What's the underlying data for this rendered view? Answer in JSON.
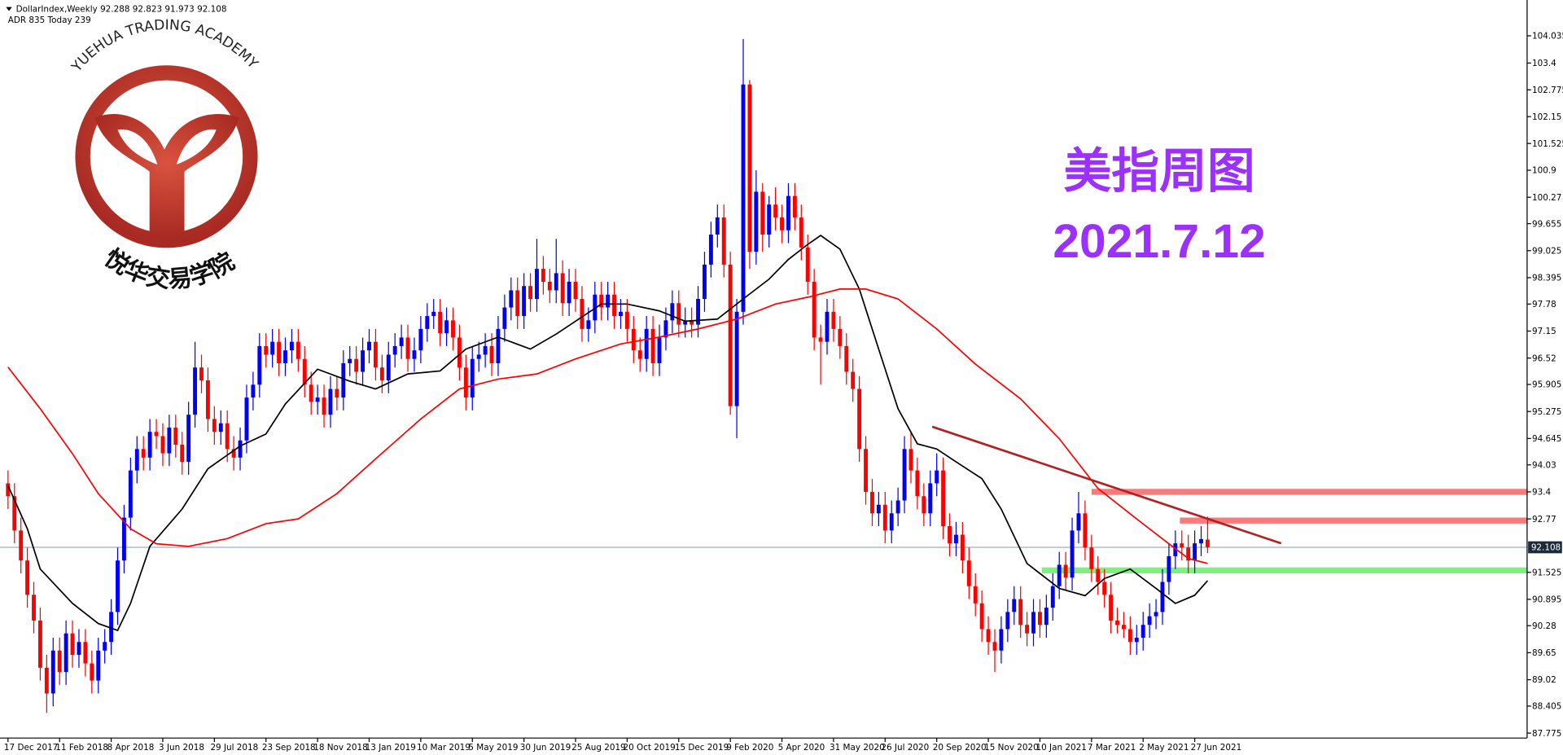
{
  "chart_data": {
    "type": "candlestick",
    "title": "DollarIndex,Weekly",
    "subtitle": "ADR 835  Today 239",
    "up_color": "#0000ff",
    "down_color": "#ff0000",
    "open": [
      93.6,
      93.3,
      92.5,
      91.8,
      91.0,
      90.4,
      89.3,
      88.7,
      89.7,
      89.2,
      90.1,
      89.6,
      89.9,
      89.4,
      89.0,
      89.7,
      89.9,
      90.6,
      91.8,
      92.8,
      93.9,
      94.4,
      94.2,
      94.8,
      94.7,
      94.3,
      94.9,
      94.5,
      94.1,
      95.2,
      96.3,
      96.0,
      95.1,
      94.8,
      95.0,
      94.4,
      94.2,
      94.6,
      95.6,
      95.9,
      96.8,
      96.6,
      96.9,
      96.4,
      96.7,
      96.9,
      96.5,
      95.9,
      95.5,
      95.6,
      95.2,
      95.8,
      95.6,
      96.4,
      96.5,
      96.2,
      96.7,
      96.9,
      96.3,
      96.0,
      96.6,
      96.8,
      97.0,
      96.5,
      96.7,
      97.2,
      97.5,
      97.6,
      97.1,
      97.4,
      97.0,
      96.3,
      95.6,
      96.5,
      96.6,
      96.8,
      96.4,
      97.2,
      97.7,
      98.1,
      97.5,
      98.2,
      97.9,
      98.6,
      98.3,
      98.1,
      98.5,
      97.8,
      98.3,
      97.9,
      97.2,
      97.4,
      98.0,
      97.7,
      98.0,
      97.5,
      97.6,
      97.2,
      96.7,
      96.5,
      97.2,
      96.4,
      97.0,
      97.4,
      97.8,
      97.3,
      97.4,
      97.3,
      97.9,
      98.7,
      99.4,
      99.8,
      98.7,
      95.4,
      97.6,
      102.9,
      99.0,
      100.4,
      99.4,
      100.1,
      99.8,
      99.5,
      100.3,
      99.8,
      99.1,
      98.3,
      97.0,
      96.9,
      97.6,
      97.2,
      96.8,
      96.2,
      95.8,
      94.4,
      93.4,
      92.9,
      93.1,
      92.5,
      92.9,
      93.2,
      94.4,
      93.9,
      93.3,
      92.9,
      93.6,
      93.9,
      92.6,
      92.2,
      92.4,
      91.8,
      91.2,
      90.8,
      90.2,
      89.9,
      89.7,
      90.2,
      90.6,
      90.9,
      90.3,
      90.1,
      90.6,
      90.3,
      90.7,
      91.2,
      91.7,
      91.4,
      92.5,
      92.9,
      92.1,
      91.6,
      91.3,
      91.0,
      90.4,
      90.3,
      90.2,
      89.9,
      90.0,
      90.3,
      90.5,
      90.6,
      91.3,
      91.9,
      92.2,
      92.1,
      91.8,
      92.2,
      92.288
    ],
    "high": [
      93.9,
      93.6,
      92.8,
      92.1,
      91.3,
      90.7,
      89.6,
      90.0,
      90.0,
      90.4,
      90.4,
      90.2,
      90.2,
      89.7,
      90.0,
      90.2,
      90.9,
      92.1,
      93.1,
      94.2,
      94.7,
      94.7,
      95.1,
      95.1,
      95.0,
      95.2,
      95.2,
      94.8,
      95.5,
      96.9,
      96.6,
      96.3,
      95.4,
      95.3,
      95.3,
      94.7,
      94.9,
      95.9,
      96.2,
      97.1,
      97.1,
      97.2,
      97.2,
      97.0,
      97.2,
      97.2,
      96.8,
      96.2,
      95.9,
      95.9,
      96.1,
      96.1,
      96.7,
      96.8,
      96.8,
      97.0,
      97.2,
      97.2,
      96.6,
      96.9,
      97.1,
      97.3,
      97.3,
      97.0,
      97.5,
      97.8,
      97.9,
      97.9,
      97.7,
      97.7,
      97.3,
      96.6,
      96.8,
      96.9,
      97.1,
      97.1,
      97.5,
      98.0,
      98.4,
      98.4,
      98.5,
      98.5,
      99.3,
      98.9,
      98.6,
      99.3,
      98.8,
      98.6,
      98.6,
      98.2,
      97.7,
      98.3,
      98.3,
      98.3,
      98.3,
      97.9,
      97.9,
      97.5,
      97.0,
      97.5,
      97.5,
      97.3,
      97.7,
      98.1,
      98.1,
      97.7,
      97.7,
      98.2,
      99.0,
      99.7,
      100.1,
      100.1,
      99.0,
      97.9,
      103.96,
      103.0,
      100.9,
      100.6,
      100.3,
      100.5,
      100.1,
      100.6,
      100.6,
      100.1,
      99.4,
      98.6,
      97.3,
      97.9,
      97.9,
      97.5,
      97.1,
      96.5,
      96.1,
      94.7,
      93.7,
      93.4,
      93.4,
      93.2,
      93.5,
      94.7,
      94.8,
      94.2,
      93.6,
      93.9,
      94.3,
      94.2,
      92.9,
      92.7,
      92.7,
      92.1,
      91.5,
      91.1,
      90.5,
      90.2,
      90.5,
      90.9,
      91.2,
      91.2,
      90.6,
      90.9,
      90.9,
      91.0,
      91.5,
      92.0,
      92.0,
      92.8,
      93.4,
      93.2,
      92.4,
      91.9,
      91.6,
      91.3,
      90.7,
      90.6,
      90.5,
      90.3,
      90.6,
      90.8,
      90.9,
      91.6,
      92.2,
      92.5,
      92.5,
      92.4,
      92.5,
      92.6,
      92.823
    ],
    "low": [
      93.0,
      92.2,
      91.5,
      90.7,
      90.1,
      89.0,
      88.25,
      88.4,
      88.9,
      88.9,
      89.3,
      89.3,
      89.1,
      88.7,
      88.7,
      89.4,
      89.6,
      90.3,
      91.5,
      92.5,
      93.6,
      93.9,
      93.9,
      94.4,
      94.0,
      94.0,
      94.2,
      93.8,
      93.8,
      94.9,
      95.7,
      94.8,
      94.5,
      94.5,
      94.1,
      93.9,
      93.9,
      94.3,
      95.3,
      95.6,
      96.3,
      96.3,
      96.1,
      96.1,
      96.4,
      96.2,
      95.6,
      95.2,
      95.2,
      94.9,
      94.9,
      95.3,
      95.3,
      96.1,
      95.9,
      95.9,
      96.4,
      96.0,
      95.7,
      95.7,
      96.3,
      96.5,
      96.2,
      96.2,
      96.4,
      96.9,
      97.2,
      96.8,
      96.8,
      96.7,
      96.0,
      95.3,
      95.3,
      96.2,
      96.3,
      96.1,
      96.1,
      96.9,
      97.4,
      97.2,
      97.2,
      97.6,
      97.6,
      98.0,
      97.8,
      97.8,
      97.5,
      97.5,
      97.6,
      96.9,
      96.9,
      97.1,
      97.4,
      97.4,
      97.2,
      97.2,
      96.9,
      96.4,
      96.2,
      96.2,
      96.1,
      96.1,
      96.7,
      97.1,
      97.0,
      97.0,
      97.0,
      97.0,
      97.6,
      98.4,
      99.1,
      98.4,
      95.2,
      94.65,
      97.3,
      98.6,
      98.7,
      99.0,
      99.1,
      99.5,
      99.2,
      99.2,
      99.5,
      98.8,
      98.0,
      96.7,
      95.9,
      96.6,
      96.9,
      96.5,
      95.9,
      95.5,
      94.1,
      93.1,
      92.6,
      92.6,
      92.2,
      92.2,
      92.6,
      92.9,
      93.6,
      93.0,
      92.6,
      92.6,
      93.3,
      92.3,
      91.9,
      91.9,
      91.5,
      90.9,
      90.5,
      89.9,
      89.6,
      89.2,
      89.4,
      89.9,
      90.3,
      90.0,
      89.8,
      89.8,
      90.0,
      90.0,
      90.4,
      90.9,
      91.1,
      91.1,
      92.2,
      91.8,
      91.3,
      91.0,
      90.7,
      90.1,
      90.1,
      90.0,
      89.6,
      89.6,
      89.7,
      90.0,
      90.2,
      90.3,
      91.0,
      91.6,
      91.8,
      91.5,
      91.5,
      91.9,
      91.973
    ],
    "close": [
      93.3,
      92.5,
      91.8,
      91.0,
      90.4,
      89.3,
      88.7,
      89.7,
      89.2,
      90.1,
      89.6,
      89.9,
      89.4,
      89.0,
      89.7,
      89.9,
      90.6,
      91.8,
      92.8,
      93.9,
      94.4,
      94.2,
      94.8,
      94.7,
      94.3,
      94.9,
      94.5,
      94.1,
      95.2,
      96.3,
      96.0,
      95.1,
      94.8,
      95.0,
      94.4,
      94.2,
      94.6,
      95.6,
      95.9,
      96.8,
      96.6,
      96.9,
      96.4,
      96.7,
      96.9,
      96.5,
      95.9,
      95.5,
      95.6,
      95.2,
      95.8,
      95.6,
      96.4,
      96.5,
      96.2,
      96.7,
      96.9,
      96.3,
      96.0,
      96.6,
      96.8,
      97.0,
      96.5,
      96.7,
      97.2,
      97.5,
      97.6,
      97.1,
      97.4,
      97.0,
      96.3,
      95.6,
      96.5,
      96.6,
      96.8,
      96.4,
      97.2,
      97.7,
      98.1,
      97.5,
      98.2,
      97.9,
      98.6,
      98.3,
      98.1,
      98.5,
      97.8,
      98.3,
      97.9,
      97.2,
      97.4,
      98.0,
      97.7,
      98.0,
      97.5,
      97.6,
      97.2,
      96.7,
      96.5,
      97.2,
      96.4,
      97.0,
      97.4,
      97.8,
      97.3,
      97.4,
      97.3,
      97.9,
      98.7,
      99.4,
      99.8,
      98.7,
      95.4,
      97.6,
      102.9,
      99.0,
      100.4,
      99.4,
      100.1,
      99.8,
      99.5,
      100.3,
      99.8,
      99.1,
      98.3,
      97.0,
      96.9,
      97.6,
      97.2,
      96.8,
      96.2,
      95.8,
      94.4,
      93.4,
      92.9,
      93.1,
      92.5,
      92.9,
      93.2,
      94.4,
      93.9,
      93.3,
      92.9,
      93.6,
      93.9,
      92.6,
      92.2,
      92.4,
      91.8,
      91.2,
      90.8,
      90.2,
      89.9,
      89.7,
      90.2,
      90.6,
      90.9,
      90.3,
      90.1,
      90.6,
      90.3,
      90.7,
      91.2,
      91.7,
      91.4,
      92.5,
      92.9,
      92.1,
      91.6,
      91.3,
      91.0,
      90.4,
      90.3,
      90.2,
      89.9,
      90.0,
      90.3,
      90.5,
      90.6,
      91.3,
      91.9,
      92.2,
      92.1,
      91.8,
      92.2,
      92.3,
      92.108
    ],
    "series": [
      {
        "color": "#000000",
        "x": [
          0,
          3,
          5,
          10,
          14,
          17,
          19,
          22,
          27,
          31,
          36,
          40,
          43,
          48,
          53,
          57,
          62,
          67,
          71,
          76,
          81,
          85,
          92,
          96,
          101,
          105,
          110,
          114,
          118,
          121,
          124,
          126,
          129,
          132,
          135,
          138,
          141,
          144,
          147,
          151,
          154,
          158,
          163,
          167,
          170,
          174,
          178,
          181,
          184,
          186
        ],
        "values": [
          93.55,
          92.54,
          91.6,
          90.8,
          90.33,
          90.17,
          90.8,
          92.13,
          93.0,
          93.94,
          94.47,
          94.75,
          95.45,
          96.26,
          95.98,
          95.8,
          96.15,
          96.22,
          96.73,
          97.01,
          96.73,
          97.08,
          97.78,
          97.78,
          97.62,
          97.38,
          97.43,
          97.9,
          98.36,
          98.82,
          99.17,
          99.38,
          99.06,
          98.13,
          96.73,
          95.34,
          94.52,
          94.4,
          94.1,
          93.71,
          93.0,
          91.73,
          91.15,
          90.98,
          91.38,
          91.6,
          91.15,
          90.8,
          90.99,
          91.33
        ]
      },
      {
        "color": "#ff0000",
        "x": [
          0,
          5,
          10,
          14,
          19,
          23,
          28,
          34,
          40,
          45,
          51,
          57,
          64,
          70,
          76,
          82,
          88,
          95,
          101,
          107,
          113,
          119,
          124,
          129,
          133,
          138,
          144,
          150,
          157,
          163,
          169,
          175,
          180,
          183,
          186
        ],
        "values": [
          96.31,
          95.34,
          94.29,
          93.36,
          92.54,
          92.19,
          92.13,
          92.31,
          92.66,
          92.77,
          93.36,
          94.17,
          95.1,
          95.8,
          96.03,
          96.15,
          96.5,
          96.85,
          97.01,
          97.2,
          97.43,
          97.78,
          97.94,
          98.13,
          98.13,
          97.9,
          97.2,
          96.38,
          95.57,
          94.64,
          93.48,
          92.77,
          92.19,
          91.85,
          91.73
        ]
      }
    ],
    "trendline": {
      "color": "#b22222",
      "x": [
        143.3,
        197.4
      ],
      "values": [
        94.92,
        92.2
      ]
    },
    "zones": [
      {
        "x": 168,
        "value": 93.4,
        "color": "#f47c7c"
      },
      {
        "x": 181.7,
        "value": 92.73,
        "color": "#f47c7c"
      },
      {
        "x": 160.3,
        "value": 91.57,
        "color": "#7ff07f"
      }
    ],
    "xlim": [
      -1.24,
      235.54
    ],
    "ylim": [
      87.66,
      104.87
    ],
    "yticks": [
      104.035,
      103.4,
      102.775,
      102.15,
      101.525,
      100.9,
      100.27,
      99.655,
      99.025,
      98.395,
      97.78,
      97.15,
      96.52,
      95.905,
      95.275,
      94.645,
      94.03,
      93.4,
      92.77,
      91.525,
      90.895,
      90.28,
      89.65,
      89.02,
      88.405,
      87.775
    ],
    "xticks": [
      {
        "value": 0,
        "label": "17 Dec 2017"
      },
      {
        "value": 8,
        "label": "11 Feb 2018"
      },
      {
        "value": 16,
        "label": "8 Apr 2018"
      },
      {
        "value": 24,
        "label": "3 Jun 2018"
      },
      {
        "value": 32,
        "label": "29 Jul 2018"
      },
      {
        "value": 40,
        "label": "23 Sep 2018"
      },
      {
        "value": 48,
        "label": "18 Nov 2018"
      },
      {
        "value": 56,
        "label": "13 Jan 2019"
      },
      {
        "value": 64,
        "label": "10 Mar 2019"
      },
      {
        "value": 72,
        "label": "5 May 2019"
      },
      {
        "value": 80,
        "label": "30 Jun 2019"
      },
      {
        "value": 88,
        "label": "25 Aug 2019"
      },
      {
        "value": 96,
        "label": "20 Oct 2019"
      },
      {
        "value": 104,
        "label": "15 Dec 2019"
      },
      {
        "value": 112,
        "label": "9 Feb 2020"
      },
      {
        "value": 120,
        "label": "5 Apr 2020"
      },
      {
        "value": 128,
        "label": "31 May 2020"
      },
      {
        "value": 136,
        "label": "26 Jul 2020"
      },
      {
        "value": 144,
        "label": "20 Sep 2020"
      },
      {
        "value": 152,
        "label": "15 Nov 2020"
      },
      {
        "value": 160,
        "label": "10 Jan 2021"
      },
      {
        "value": 168,
        "label": "7 Mar 2021"
      },
      {
        "value": 176,
        "label": "2 May 2021"
      },
      {
        "value": 184,
        "label": "27 Jun 2021"
      }
    ],
    "annotation_title": "美指周图",
    "annotation_date": "2021.7.12"
  },
  "logo": {
    "name_en": "YUEHUA TRADING ACADEMY",
    "name_cn": "悦华交易学院"
  }
}
